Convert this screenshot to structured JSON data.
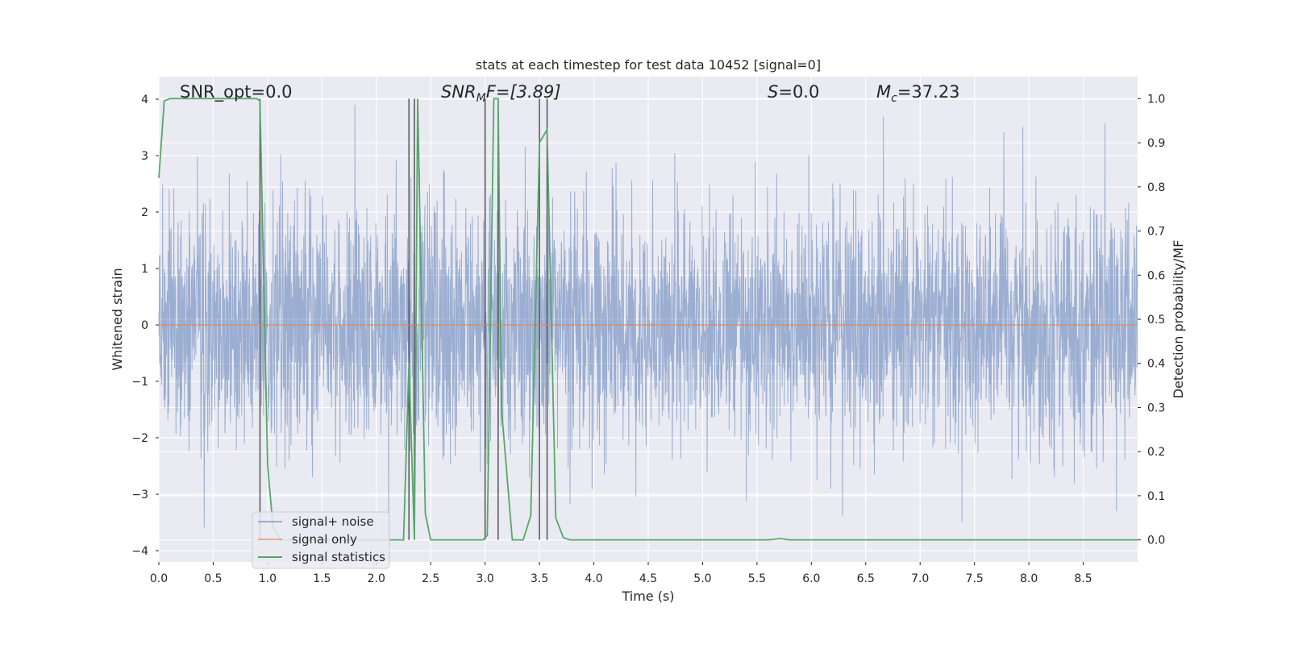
{
  "chart_data": {
    "type": "line",
    "title": "stats at each timestep for test data 10452 [signal=0]",
    "xlabel": "Time (s)",
    "ylabel": "Whitened strain",
    "ylabel_right": "Detection probability/MF",
    "xlim": [
      0.0,
      9.0
    ],
    "ylim": [
      -4.2,
      4.4
    ],
    "ylim_right": [
      -0.05,
      1.05
    ],
    "x_ticks": [
      "0.0",
      "0.5",
      "1.0",
      "1.5",
      "2.0",
      "2.5",
      "3.0",
      "3.5",
      "4.0",
      "4.5",
      "5.0",
      "5.5",
      "6.0",
      "6.5",
      "7.0",
      "7.5",
      "8.0",
      "8.5"
    ],
    "y_ticks": [
      "4",
      "3",
      "2",
      "1",
      "0",
      "−1",
      "−2",
      "−3",
      "−4"
    ],
    "y_ticks_right": [
      "1.0",
      "0.9",
      "0.8",
      "0.7",
      "0.6",
      "0.5",
      "0.4",
      "0.3",
      "0.2",
      "0.1",
      "0.0"
    ],
    "grid": true,
    "legend_position": "lower-left",
    "annotations": {
      "snr_opt": "SNR_opt=0.0",
      "snr_mf_main": "SNR",
      "snr_mf_sub": "M",
      "snr_mf_tail": "F=[3.89]",
      "s_main": "S",
      "s_tail": "=0.0",
      "mc_main": "M",
      "mc_sub": "c",
      "mc_tail": "=37.23"
    },
    "series": [
      {
        "name": "signal+ noise",
        "color": "#4c72b0",
        "noise_std": 1.0,
        "typical_peak_range": [
          -3.8,
          3.9
        ]
      },
      {
        "name": "signal only",
        "color": "#dd8452",
        "x": [
          0.0,
          9.0
        ],
        "y": [
          0.0,
          0.0
        ]
      },
      {
        "name": "signal statistics",
        "color": "#55a868",
        "axis": "right",
        "x": [
          0.0,
          0.05,
          0.1,
          0.15,
          0.5,
          0.9,
          0.93,
          1.0,
          1.05,
          1.12,
          1.2,
          1.5,
          2.0,
          2.25,
          2.3,
          2.35,
          2.38,
          2.45,
          2.5,
          2.55,
          2.9,
          2.98,
          3.02,
          3.08,
          3.12,
          3.15,
          3.25,
          3.35,
          3.42,
          3.5,
          3.57,
          3.65,
          3.72,
          3.78,
          4.0,
          5.0,
          5.6,
          5.72,
          5.8,
          6.0,
          7.0,
          8.0,
          9.0
        ],
        "y": [
          0.82,
          0.995,
          1.0,
          1.0,
          1.0,
          1.0,
          0.995,
          0.17,
          0.03,
          0.0,
          0.0,
          0.0,
          0.0,
          0.0,
          0.4,
          0.0,
          1.0,
          0.06,
          0.0,
          0.0,
          0.0,
          0.0,
          0.01,
          1.0,
          1.0,
          0.3,
          0.0,
          0.0,
          0.055,
          0.9,
          0.93,
          0.05,
          0.005,
          0.0,
          0.0,
          0.0,
          0.0,
          0.003,
          0.0,
          0.0,
          0.0,
          0.0,
          0.0
        ]
      }
    ],
    "vertical_markers_x": [
      0.93,
      2.3,
      2.35,
      3.0,
      3.12,
      3.5,
      3.57
    ]
  }
}
